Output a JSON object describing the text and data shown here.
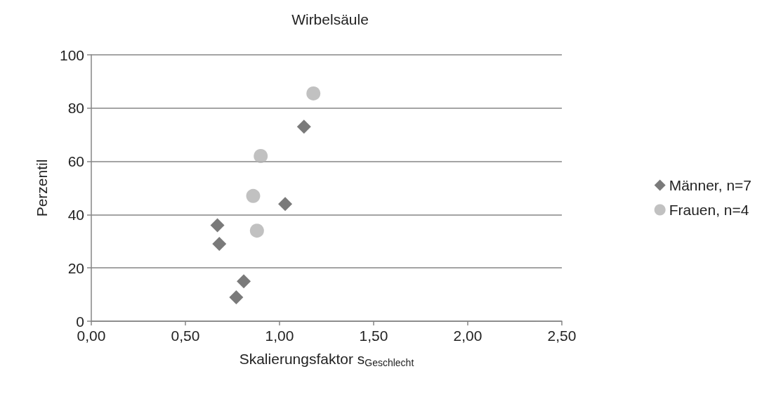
{
  "chart_data": {
    "type": "scatter",
    "title": "Wirbelsäule",
    "xlabel": "Skalierungsfaktor s$_{Geschlecht}$",
    "ylabel": "Perzentil",
    "xlim": [
      0,
      2.5
    ],
    "xticks": [
      {
        "value": 0,
        "label": "0,00"
      },
      {
        "value": 0.5,
        "label": "0,50"
      },
      {
        "value": 1,
        "label": "1,00"
      },
      {
        "value": 1.5,
        "label": "1,50"
      },
      {
        "value": 2,
        "label": "2,00"
      },
      {
        "value": 2.5,
        "label": "2,50"
      }
    ],
    "ylim": [
      0,
      100
    ],
    "yticks": [
      0,
      20,
      40,
      60,
      80,
      100
    ],
    "grid": "y",
    "legend": "right",
    "series": [
      {
        "name": "Männer, n=7",
        "color": "#595959",
        "marker": "diamond",
        "x": [
          0.67,
          0.68,
          0.81,
          0.77,
          1.03,
          1.13
        ],
        "values": [
          36,
          29,
          15,
          9,
          44,
          73
        ]
      },
      {
        "name": "Frauen, n=4",
        "color": "#b2b2b2",
        "marker": "circle",
        "x": [
          1.18,
          0.9,
          0.86,
          0.88
        ],
        "values": [
          85.5,
          62,
          47,
          34
        ]
      }
    ]
  }
}
